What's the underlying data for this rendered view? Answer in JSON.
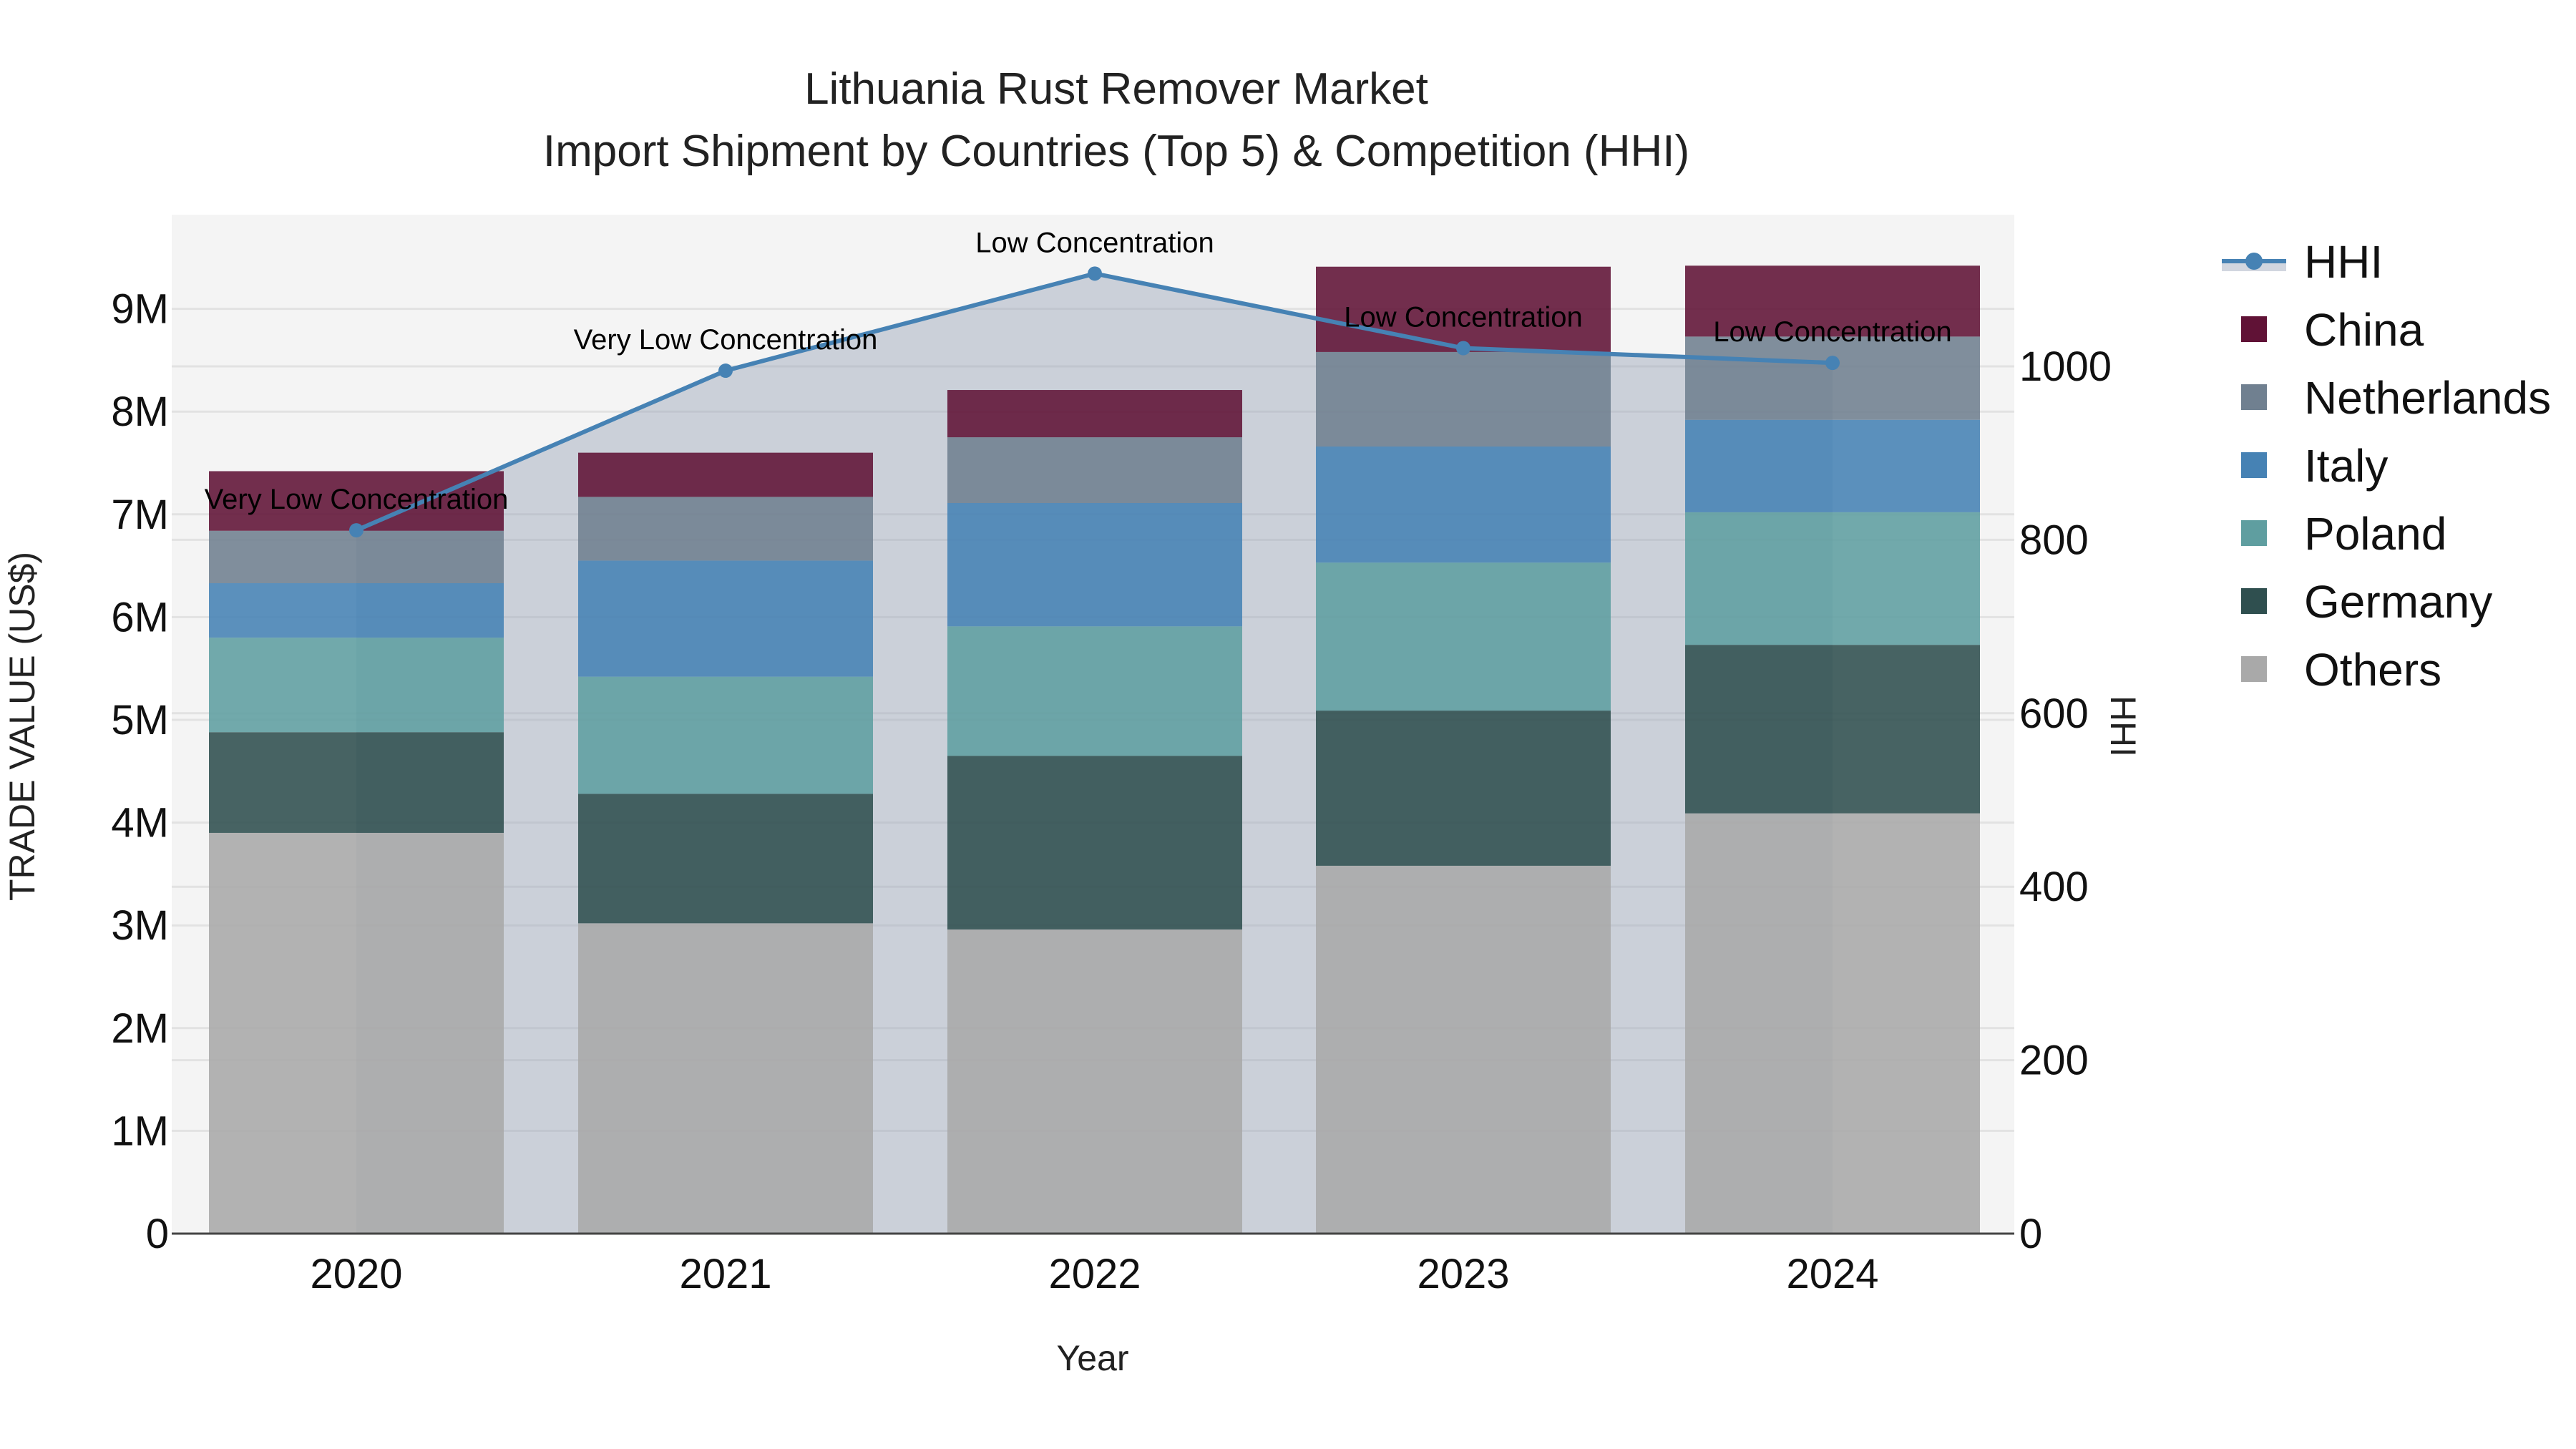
{
  "chart_data": {
    "type": "bar",
    "subtype": "stacked_bar_with_line_secondary_axis",
    "title": "Lithuania Rust Remover Market",
    "subtitle": "Import Shipment by Countries (Top 5) & Competition (HHI)",
    "xlabel": "Year",
    "ylabel": "TRADE VALUE (US$)",
    "y2label": "HHI",
    "categories": [
      "2020",
      "2021",
      "2022",
      "2023",
      "2024"
    ],
    "ylim": [
      0,
      9900000
    ],
    "y_ticks": [
      0,
      1000000,
      2000000,
      3000000,
      4000000,
      5000000,
      6000000,
      7000000,
      8000000,
      9000000
    ],
    "y_tick_labels": [
      "0",
      "1M",
      "2M",
      "3M",
      "4M",
      "5M",
      "6M",
      "7M",
      "8M",
      "9M"
    ],
    "y2lim": [
      0,
      1175
    ],
    "y2_ticks": [
      0,
      200,
      400,
      600,
      800,
      1000
    ],
    "y2_tick_labels": [
      "0",
      "200",
      "400",
      "600",
      "800",
      "1000"
    ],
    "grid": true,
    "legend_position": "right",
    "series": [
      {
        "name": "Others",
        "color": "#A9A9A9",
        "values": [
          3900000,
          3020000,
          2960000,
          3580000,
          4090000
        ]
      },
      {
        "name": "Germany",
        "color": "#2F4F4F",
        "values": [
          980000,
          1260000,
          1690000,
          1510000,
          1640000
        ]
      },
      {
        "name": "Poland",
        "color": "#5F9EA0",
        "values": [
          920000,
          1140000,
          1260000,
          1440000,
          1290000
        ]
      },
      {
        "name": "Italy",
        "color": "#4682B4",
        "values": [
          530000,
          1130000,
          1200000,
          1130000,
          900000
        ]
      },
      {
        "name": "Netherlands",
        "color": "#708090",
        "values": [
          510000,
          620000,
          640000,
          920000,
          810000
        ]
      },
      {
        "name": "China",
        "color": "#601236",
        "values": [
          580000,
          430000,
          460000,
          830000,
          690000
        ]
      }
    ],
    "line_series": {
      "name": "HHI",
      "color": "#4682B4",
      "fill_color": "#9AA5B8",
      "axis": "y2",
      "values": [
        811,
        995,
        1107,
        1021,
        1004
      ],
      "annotations": [
        "Very Low Concentration",
        "Very Low Concentration",
        "Low Concentration",
        "Low Concentration",
        "Low Concentration"
      ]
    },
    "legend": [
      "HHI",
      "China",
      "Netherlands",
      "Italy",
      "Poland",
      "Germany",
      "Others"
    ]
  },
  "colors": {
    "plot_bg": "#F4F4F4",
    "grid": "#E2E2E2",
    "axis_line": "#444444"
  }
}
